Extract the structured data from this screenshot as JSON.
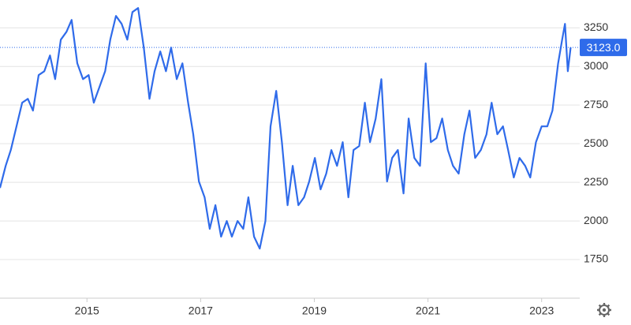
{
  "chart_data": {
    "type": "line",
    "x": [
      2013.47,
      2013.57,
      2013.66,
      2013.76,
      2013.86,
      2013.96,
      2014.05,
      2014.15,
      2014.25,
      2014.35,
      2014.44,
      2014.54,
      2014.64,
      2014.73,
      2014.83,
      2014.93,
      2015.03,
      2015.12,
      2015.22,
      2015.32,
      2015.41,
      2015.51,
      2015.61,
      2015.71,
      2015.8,
      2015.9,
      2016.0,
      2016.1,
      2016.19,
      2016.29,
      2016.39,
      2016.48,
      2016.58,
      2016.68,
      2016.78,
      2016.87,
      2016.97,
      2017.07,
      2017.16,
      2017.26,
      2017.36,
      2017.46,
      2017.55,
      2017.65,
      2017.75,
      2017.84,
      2017.94,
      2018.04,
      2018.14,
      2018.23,
      2018.33,
      2018.43,
      2018.53,
      2018.62,
      2018.72,
      2018.82,
      2018.91,
      2019.01,
      2019.11,
      2019.21,
      2019.3,
      2019.4,
      2019.5,
      2019.6,
      2019.69,
      2019.79,
      2019.89,
      2019.98,
      2020.08,
      2020.18,
      2020.28,
      2020.37,
      2020.47,
      2020.57,
      2020.66,
      2020.76,
      2020.86,
      2020.96,
      2021.05,
      2021.15,
      2021.25,
      2021.35,
      2021.44,
      2021.54,
      2021.64,
      2021.73,
      2021.83,
      2021.93,
      2022.03,
      2022.12,
      2022.22,
      2022.32,
      2022.41,
      2022.51,
      2022.61,
      2022.71,
      2022.8,
      2022.9,
      2023.0,
      2023.1,
      2023.19,
      2023.29,
      2023.36,
      2023.41,
      2023.46,
      2023.51
    ],
    "series": [
      {
        "color": "#2f6bea",
        "values": [
          2214,
          2357,
          2459,
          2612,
          2765,
          2790,
          2714,
          2944,
          2969,
          3071,
          2918,
          3173,
          3224,
          3301,
          3020,
          2918,
          2944,
          2765,
          2867,
          2969,
          3173,
          3327,
          3276,
          3173,
          3352,
          3378,
          3122,
          2790,
          2969,
          3097,
          2969,
          3122,
          2918,
          3020,
          2765,
          2561,
          2255,
          2153,
          1949,
          2102,
          1898,
          2000,
          1898,
          2000,
          1949,
          2153,
          1898,
          1821,
          2000,
          2612,
          2842,
          2510,
          2102,
          2357,
          2102,
          2153,
          2255,
          2408,
          2204,
          2306,
          2459,
          2357,
          2510,
          2153,
          2459,
          2485,
          2765,
          2510,
          2663,
          2918,
          2255,
          2408,
          2459,
          2178,
          2663,
          2408,
          2357,
          3020,
          2510,
          2536,
          2663,
          2459,
          2357,
          2306,
          2561,
          2714,
          2408,
          2459,
          2561,
          2765,
          2561,
          2612,
          2459,
          2281,
          2408,
          2357,
          2281,
          2510,
          2612,
          2612,
          2714,
          3020,
          3173,
          3276,
          2969,
          3123
        ]
      }
    ],
    "xlim": [
      2013.47,
      2023.67
    ],
    "xticks": [
      2015,
      2017,
      2019,
      2021,
      2023
    ],
    "ylim": [
      1500,
      3430
    ],
    "yticks": [
      1750,
      2000,
      2250,
      2500,
      2750,
      3000,
      3250
    ],
    "grid": true,
    "last_value": {
      "value": 3123,
      "label": "3123.0"
    }
  }
}
